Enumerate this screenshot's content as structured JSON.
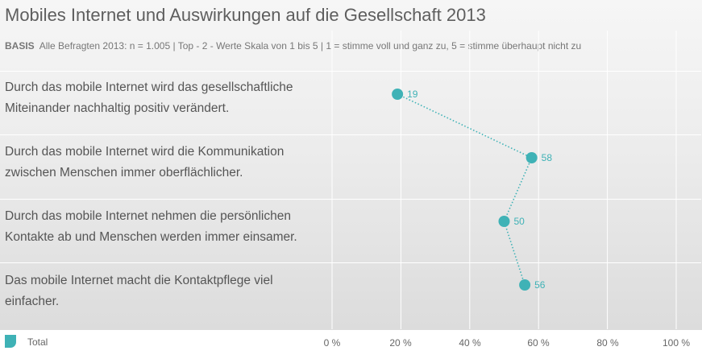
{
  "header": {
    "title": "Mobiles Internet und Auswirkungen auf die Gesellschaft 2013",
    "basis_label": "BASIS",
    "basis_text": "Alle Befragten 2013: n = 1.005 | Top - 2 - Werte Skala von 1 bis 5 | 1 = stimme voll und ganz zu,  5 = stimme überhaupt nicht zu"
  },
  "chart_data": {
    "type": "line",
    "orientation": "horizontal",
    "categories": [
      "Durch das mobile Internet wird das gesellschaftliche Miteinander nachhaltig positiv verändert.",
      "Durch das mobile Internet wird die Kommunikation zwischen Menschen immer oberflächlicher.",
      "Durch das mobile Internet nehmen die persönlichen Kontakte ab und Menschen werden immer einsamer.",
      "Das mobile Internet macht die Kontaktpflege viel einfacher."
    ],
    "series": [
      {
        "name": "Total",
        "values": [
          19,
          58,
          50,
          56
        ],
        "color": "#3fb2b6"
      }
    ],
    "xlim": [
      0,
      100
    ],
    "x_ticks": [
      "0 %",
      "20 %",
      "40 %",
      "60 %",
      "80 %",
      "100 %"
    ],
    "line_style": "dotted",
    "legend": "bottom-left"
  }
}
